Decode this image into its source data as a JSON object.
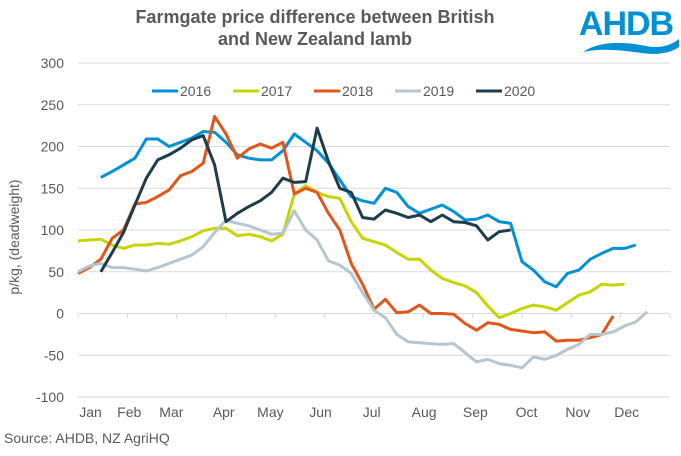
{
  "logo": {
    "text": "AHDB",
    "color": "#0091d5"
  },
  "source": "Source: AHDB, NZ AgriHQ",
  "chart_data": {
    "type": "line",
    "title": "Farmgate price difference between British and New Zealand lamb",
    "title_lines": [
      "Farmgate price difference between British",
      "and New Zealand lamb"
    ],
    "xlabel": "",
    "ylabel": "p/kg, (deadweight)",
    "ylim": [
      -100,
      300
    ],
    "yticks": [
      300,
      250,
      200,
      150,
      100,
      50,
      0,
      -50,
      -100
    ],
    "xlim_weeks": [
      0,
      52
    ],
    "xticks": [
      {
        "label": "Jan",
        "week": 1.1
      },
      {
        "label": "Feb",
        "week": 4.5
      },
      {
        "label": "Mar",
        "week": 8.2
      },
      {
        "label": "Apr",
        "week": 12.8
      },
      {
        "label": "May",
        "week": 16.9
      },
      {
        "label": "Jun",
        "week": 21.3
      },
      {
        "label": "Jul",
        "week": 25.8
      },
      {
        "label": "Aug",
        "week": 30.4
      },
      {
        "label": "Sep",
        "week": 34.9
      },
      {
        "label": "Oct",
        "week": 39.4
      },
      {
        "label": "Nov",
        "week": 43.9
      },
      {
        "label": "Dec",
        "week": 48.2
      }
    ],
    "grid": true,
    "legend": "top",
    "series": [
      {
        "name": "2016",
        "color": "#0091d5",
        "start_week": 2,
        "values": [
          163,
          170,
          178,
          186,
          209,
          209,
          200,
          205,
          210,
          218,
          217,
          205,
          190,
          186,
          184,
          184,
          195,
          215,
          205,
          195,
          180,
          160,
          140,
          135,
          132,
          150,
          145,
          128,
          120,
          125,
          130,
          122,
          112,
          113,
          118,
          110,
          108,
          62,
          52,
          38,
          32,
          48,
          52,
          65,
          72,
          78,
          78,
          82
        ]
      },
      {
        "name": "2017",
        "color": "#c8d400",
        "start_week": 0,
        "values": [
          87,
          88,
          89,
          82,
          78,
          82,
          82,
          84,
          83,
          87,
          92,
          99,
          102,
          102,
          93,
          95,
          92,
          87,
          95,
          143,
          153,
          145,
          140,
          138,
          110,
          90,
          86,
          82,
          73,
          65,
          65,
          52,
          42,
          37,
          33,
          25,
          9,
          -5,
          0,
          6,
          10,
          8,
          4,
          13,
          22,
          26,
          35,
          34,
          35
        ]
      },
      {
        "name": "2018",
        "color": "#e0561b",
        "start_week": 0,
        "values": [
          48,
          55,
          65,
          90,
          100,
          131,
          133,
          140,
          148,
          165,
          170,
          180,
          236,
          215,
          186,
          197,
          203,
          198,
          205,
          143,
          150,
          145,
          120,
          100,
          60,
          35,
          5,
          17,
          1,
          2,
          10,
          0,
          0,
          -1,
          -12,
          -20,
          -11,
          -13,
          -19,
          -21,
          -23,
          -22,
          -33,
          -32,
          -32,
          -29,
          -25,
          -3
        ]
      },
      {
        "name": "2019",
        "color": "#b4c6cf",
        "start_week": 0,
        "values": [
          50,
          57,
          60,
          55,
          55,
          53,
          51,
          55,
          60,
          65,
          70,
          80,
          97,
          112,
          108,
          105,
          100,
          95,
          96,
          123,
          100,
          88,
          63,
          58,
          48,
          25,
          4,
          -5,
          -25,
          -34,
          -35,
          -36,
          -37,
          -36,
          -47,
          -58,
          -55,
          -60,
          -62,
          -65,
          -52,
          -55,
          -50,
          -43,
          -37,
          -25,
          -25,
          -22,
          -15,
          -10,
          2
        ]
      },
      {
        "name": "2020",
        "color": "#1e3d4c",
        "start_week": 2,
        "values": [
          50,
          73,
          97,
          130,
          162,
          184,
          190,
          198,
          208,
          213,
          178,
          110,
          120,
          128,
          135,
          145,
          162,
          157,
          158,
          222,
          182,
          150,
          145,
          115,
          113,
          124,
          120,
          115,
          118,
          110,
          118,
          110,
          109,
          105,
          88,
          98,
          100
        ]
      }
    ]
  }
}
